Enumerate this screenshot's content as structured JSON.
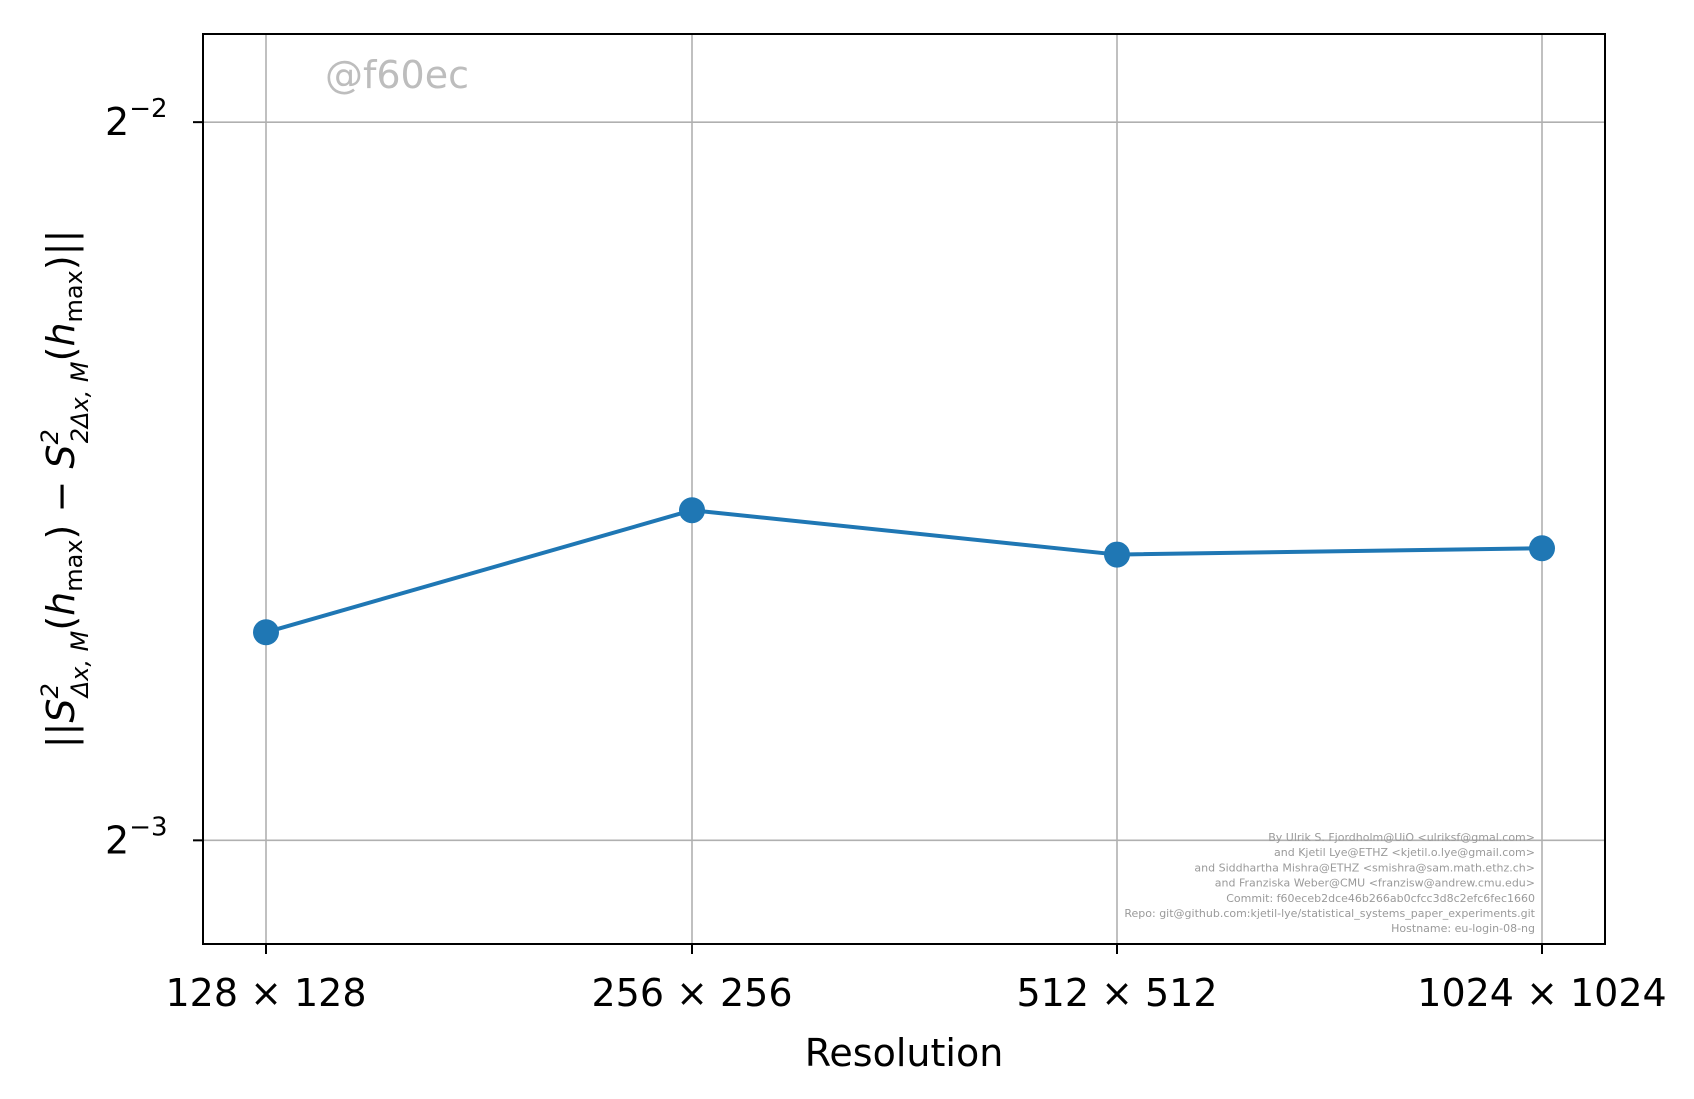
{
  "chart_data": {
    "type": "line",
    "xlabel": "Resolution",
    "ylabel": "||S²ΔX,M(hmax) − S²2ΔX,M(hmax)||",
    "categories": [
      "128 × 128",
      "256 × 256",
      "512 × 512",
      "1024 × 1024"
    ],
    "y_scale": "log2",
    "ylim": [
      0.1131,
      0.2722
    ],
    "y_ticks": [
      {
        "value": 0.25,
        "base": "2",
        "exp": "−2"
      },
      {
        "value": 0.125,
        "base": "2",
        "exp": "−3"
      }
    ],
    "grid": true,
    "series": [
      {
        "values": [
          0.1528,
          0.1719,
          0.1647,
          0.1657
        ],
        "color": "#1f77b4"
      }
    ]
  },
  "watermark": "@f60ec",
  "credits": [
    "By Ulrik S. Fjordholm@UiO <ulriksf@gmal.com>",
    "and Kjetil Lye@ETHZ <kjetil.o.lye@gmail.com>",
    "and Siddhartha Mishra@ETHZ <smishra@sam.math.ethz.ch>",
    "and Franziska Weber@CMU <franzisw@andrew.cmu.edu>",
    "Commit: f60eceb2dce46b266ab0cfcc3d8c2efc6fec1660",
    "Repo: git@github.com:kjetil-lye/statistical_systems_paper_experiments.git",
    "Hostname: eu-login-08-ng"
  ]
}
